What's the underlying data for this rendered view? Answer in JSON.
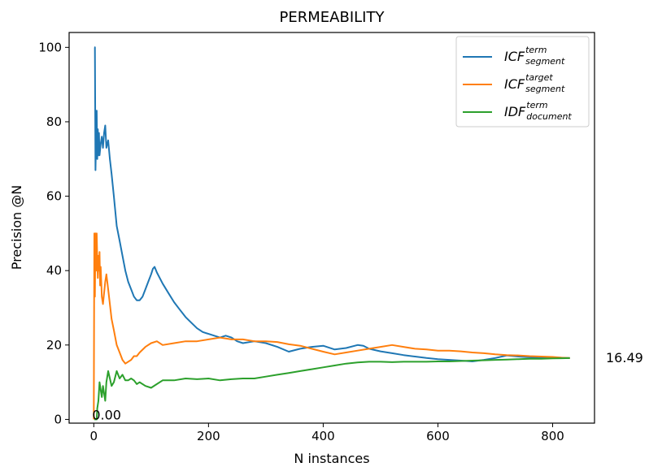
{
  "chart_data": {
    "type": "line",
    "title": "PERMEABILITY",
    "xlabel": "N instances",
    "ylabel": "Precision @N",
    "xlim": [
      -43,
      873
    ],
    "ylim": [
      -1,
      104
    ],
    "xticks": [
      0,
      200,
      400,
      600,
      800
    ],
    "yticks": [
      0,
      20,
      40,
      60,
      80,
      100
    ],
    "grid": false,
    "legend_position": "top-right",
    "annotations": [
      {
        "text": "0.00",
        "x": 0,
        "y": 0
      },
      {
        "text": "16.49",
        "x": 830,
        "y": 16.49
      }
    ],
    "series": [
      {
        "name": "ICF",
        "sup": "term",
        "sub": "segment",
        "color": "#1f77b4",
        "x": [
          1,
          2,
          3,
          4,
          5,
          6,
          7,
          8,
          9,
          10,
          12,
          14,
          16,
          18,
          20,
          22,
          25,
          28,
          31,
          35,
          40,
          45,
          50,
          55,
          60,
          65,
          70,
          75,
          80,
          85,
          90,
          95,
          100,
          103,
          106,
          110,
          120,
          130,
          140,
          150,
          160,
          170,
          180,
          190,
          200,
          210,
          220,
          230,
          240,
          250,
          260,
          280,
          300,
          320,
          340,
          360,
          380,
          400,
          420,
          440,
          460,
          470,
          480,
          500,
          520,
          540,
          560,
          580,
          600,
          620,
          640,
          660,
          680,
          700,
          720,
          740,
          760,
          780,
          800,
          815,
          830
        ],
        "y": [
          100,
          100,
          67,
          75,
          83,
          70,
          78,
          71,
          77,
          71,
          74,
          76,
          73,
          77,
          79,
          73,
          75,
          70,
          66,
          60,
          52,
          48,
          44,
          40,
          37,
          35,
          33,
          32,
          32,
          33,
          35,
          37,
          39,
          40.5,
          41,
          39.5,
          36.5,
          34,
          31.5,
          29.5,
          27.5,
          26,
          24.5,
          23.5,
          23,
          22.5,
          22,
          22.5,
          22,
          21,
          20.5,
          21,
          20.5,
          19.5,
          18.2,
          19,
          19.5,
          19.8,
          18.8,
          19.2,
          20,
          19.8,
          19,
          18.3,
          17.8,
          17.3,
          16.9,
          16.5,
          16.2,
          16,
          15.8,
          15.6,
          16,
          16.5,
          17.2,
          16.9,
          16.7,
          16.5,
          16.6,
          16.6,
          16.49
        ]
      },
      {
        "name": "ICF",
        "sup": "target",
        "sub": "segment",
        "color": "#ff7f0e",
        "x": [
          0,
          1,
          2,
          3,
          4,
          5,
          6,
          7,
          8,
          9,
          10,
          11,
          12,
          14,
          16,
          18,
          20,
          22,
          25,
          28,
          31,
          35,
          40,
          45,
          50,
          55,
          60,
          65,
          70,
          75,
          80,
          90,
          100,
          110,
          120,
          140,
          160,
          180,
          200,
          220,
          240,
          260,
          280,
          300,
          320,
          340,
          360,
          380,
          400,
          420,
          440,
          460,
          480,
          500,
          520,
          540,
          560,
          580,
          600,
          620,
          640,
          660,
          680,
          700,
          720,
          740,
          760,
          780,
          800,
          815,
          830
        ],
        "y": [
          0,
          50,
          33,
          50,
          40,
          50,
          43,
          38,
          44,
          40,
          45,
          36,
          41,
          33,
          31,
          34,
          37,
          39,
          35,
          31,
          27,
          24,
          20,
          18,
          16,
          15,
          15.5,
          16,
          17,
          17,
          18,
          19.5,
          20.5,
          21,
          20,
          20.5,
          21,
          21,
          21.5,
          22,
          21.5,
          21.5,
          21,
          21,
          20.8,
          20.2,
          19.8,
          19,
          18.2,
          17.5,
          18,
          18.5,
          19,
          19.5,
          20,
          19.5,
          19,
          18.8,
          18.5,
          18.5,
          18.3,
          18,
          17.8,
          17.5,
          17.3,
          17.2,
          17,
          16.9,
          16.8,
          16.6,
          16.49
        ]
      },
      {
        "name": "IDF",
        "sup": "term",
        "sub": "document",
        "color": "#2ca02c",
        "x": [
          1,
          3,
          5,
          6,
          8,
          10,
          12,
          14,
          16,
          18,
          20,
          22,
          25,
          28,
          31,
          35,
          40,
          45,
          50,
          55,
          60,
          65,
          70,
          75,
          80,
          90,
          100,
          110,
          120,
          140,
          160,
          180,
          200,
          220,
          240,
          260,
          280,
          300,
          320,
          340,
          360,
          380,
          400,
          420,
          440,
          460,
          480,
          500,
          520,
          540,
          560,
          580,
          600,
          620,
          640,
          660,
          680,
          700,
          720,
          740,
          760,
          780,
          800,
          815,
          830
        ],
        "y": [
          0,
          0,
          0,
          3,
          5,
          10,
          8,
          6,
          9,
          7,
          5,
          10,
          13,
          11,
          9,
          10,
          13,
          11,
          12,
          10.5,
          10.5,
          11,
          10.5,
          9.5,
          10,
          9,
          8.5,
          9.5,
          10.5,
          10.5,
          11,
          10.8,
          11,
          10.5,
          10.8,
          11,
          11,
          11.5,
          12,
          12.5,
          13,
          13.5,
          14,
          14.5,
          15,
          15.3,
          15.5,
          15.5,
          15.4,
          15.5,
          15.5,
          15.5,
          15.6,
          15.6,
          15.7,
          15.8,
          15.9,
          16,
          16.1,
          16.2,
          16.3,
          16.3,
          16.4,
          16.45,
          16.49
        ]
      }
    ]
  }
}
